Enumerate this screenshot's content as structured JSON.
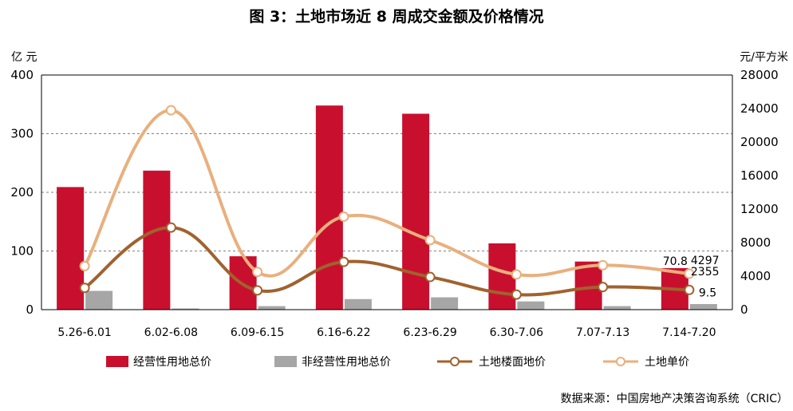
{
  "title": "图 3：土地市场近 8 周成交金额及价格情况",
  "source": "数据来源：中国房地产决策咨询系统（CRIC）",
  "colors": {
    "operating": "#C8102E",
    "non_operating": "#A6A6A6",
    "floor_price": "#A0622E",
    "unit_price": "#E8B07E",
    "grid": "#808080"
  },
  "chart_data": {
    "type": "bar",
    "title": "图 3：土地市场近 8 周成交金额及价格情况",
    "categories": [
      "5.26-6.01",
      "6.02-6.08",
      "6.09-6.15",
      "6.16-6.22",
      "6.23-6.29",
      "6.30-7.06",
      "7.07-7.13",
      "7.14-7.20"
    ],
    "left_axis": {
      "unit": "亿 元",
      "ylim": [
        0,
        400
      ],
      "ticks": [
        "0",
        "100",
        "200",
        "300",
        "400"
      ]
    },
    "right_axis": {
      "unit": "元/平方米",
      "ylim": [
        0,
        28000
      ],
      "ticks": [
        "0",
        "4000",
        "8000",
        "12000",
        "16000",
        "20000",
        "24000",
        "28000"
      ]
    },
    "grid": true,
    "legend_position": "bottom",
    "series": [
      {
        "name": "经营性用地总价",
        "kind": "bar",
        "axis": "left",
        "values": [
          209,
          237,
          91,
          348,
          334,
          113,
          82,
          70.8
        ]
      },
      {
        "name": "非经营性用地总价",
        "kind": "bar",
        "axis": "left",
        "values": [
          32,
          2,
          6,
          18,
          21,
          14,
          6,
          9.5
        ]
      },
      {
        "name": "土地楼面地价",
        "kind": "line",
        "axis": "right",
        "values": [
          2600,
          9800,
          2300,
          5700,
          3900,
          1800,
          2700,
          2355
        ]
      },
      {
        "name": "土地单价",
        "kind": "line",
        "axis": "right",
        "values": [
          5200,
          23800,
          4500,
          11100,
          8300,
          4200,
          5300,
          4297
        ]
      }
    ],
    "data_labels": [
      "70.8",
      "4297",
      "2355",
      "9.5"
    ]
  }
}
